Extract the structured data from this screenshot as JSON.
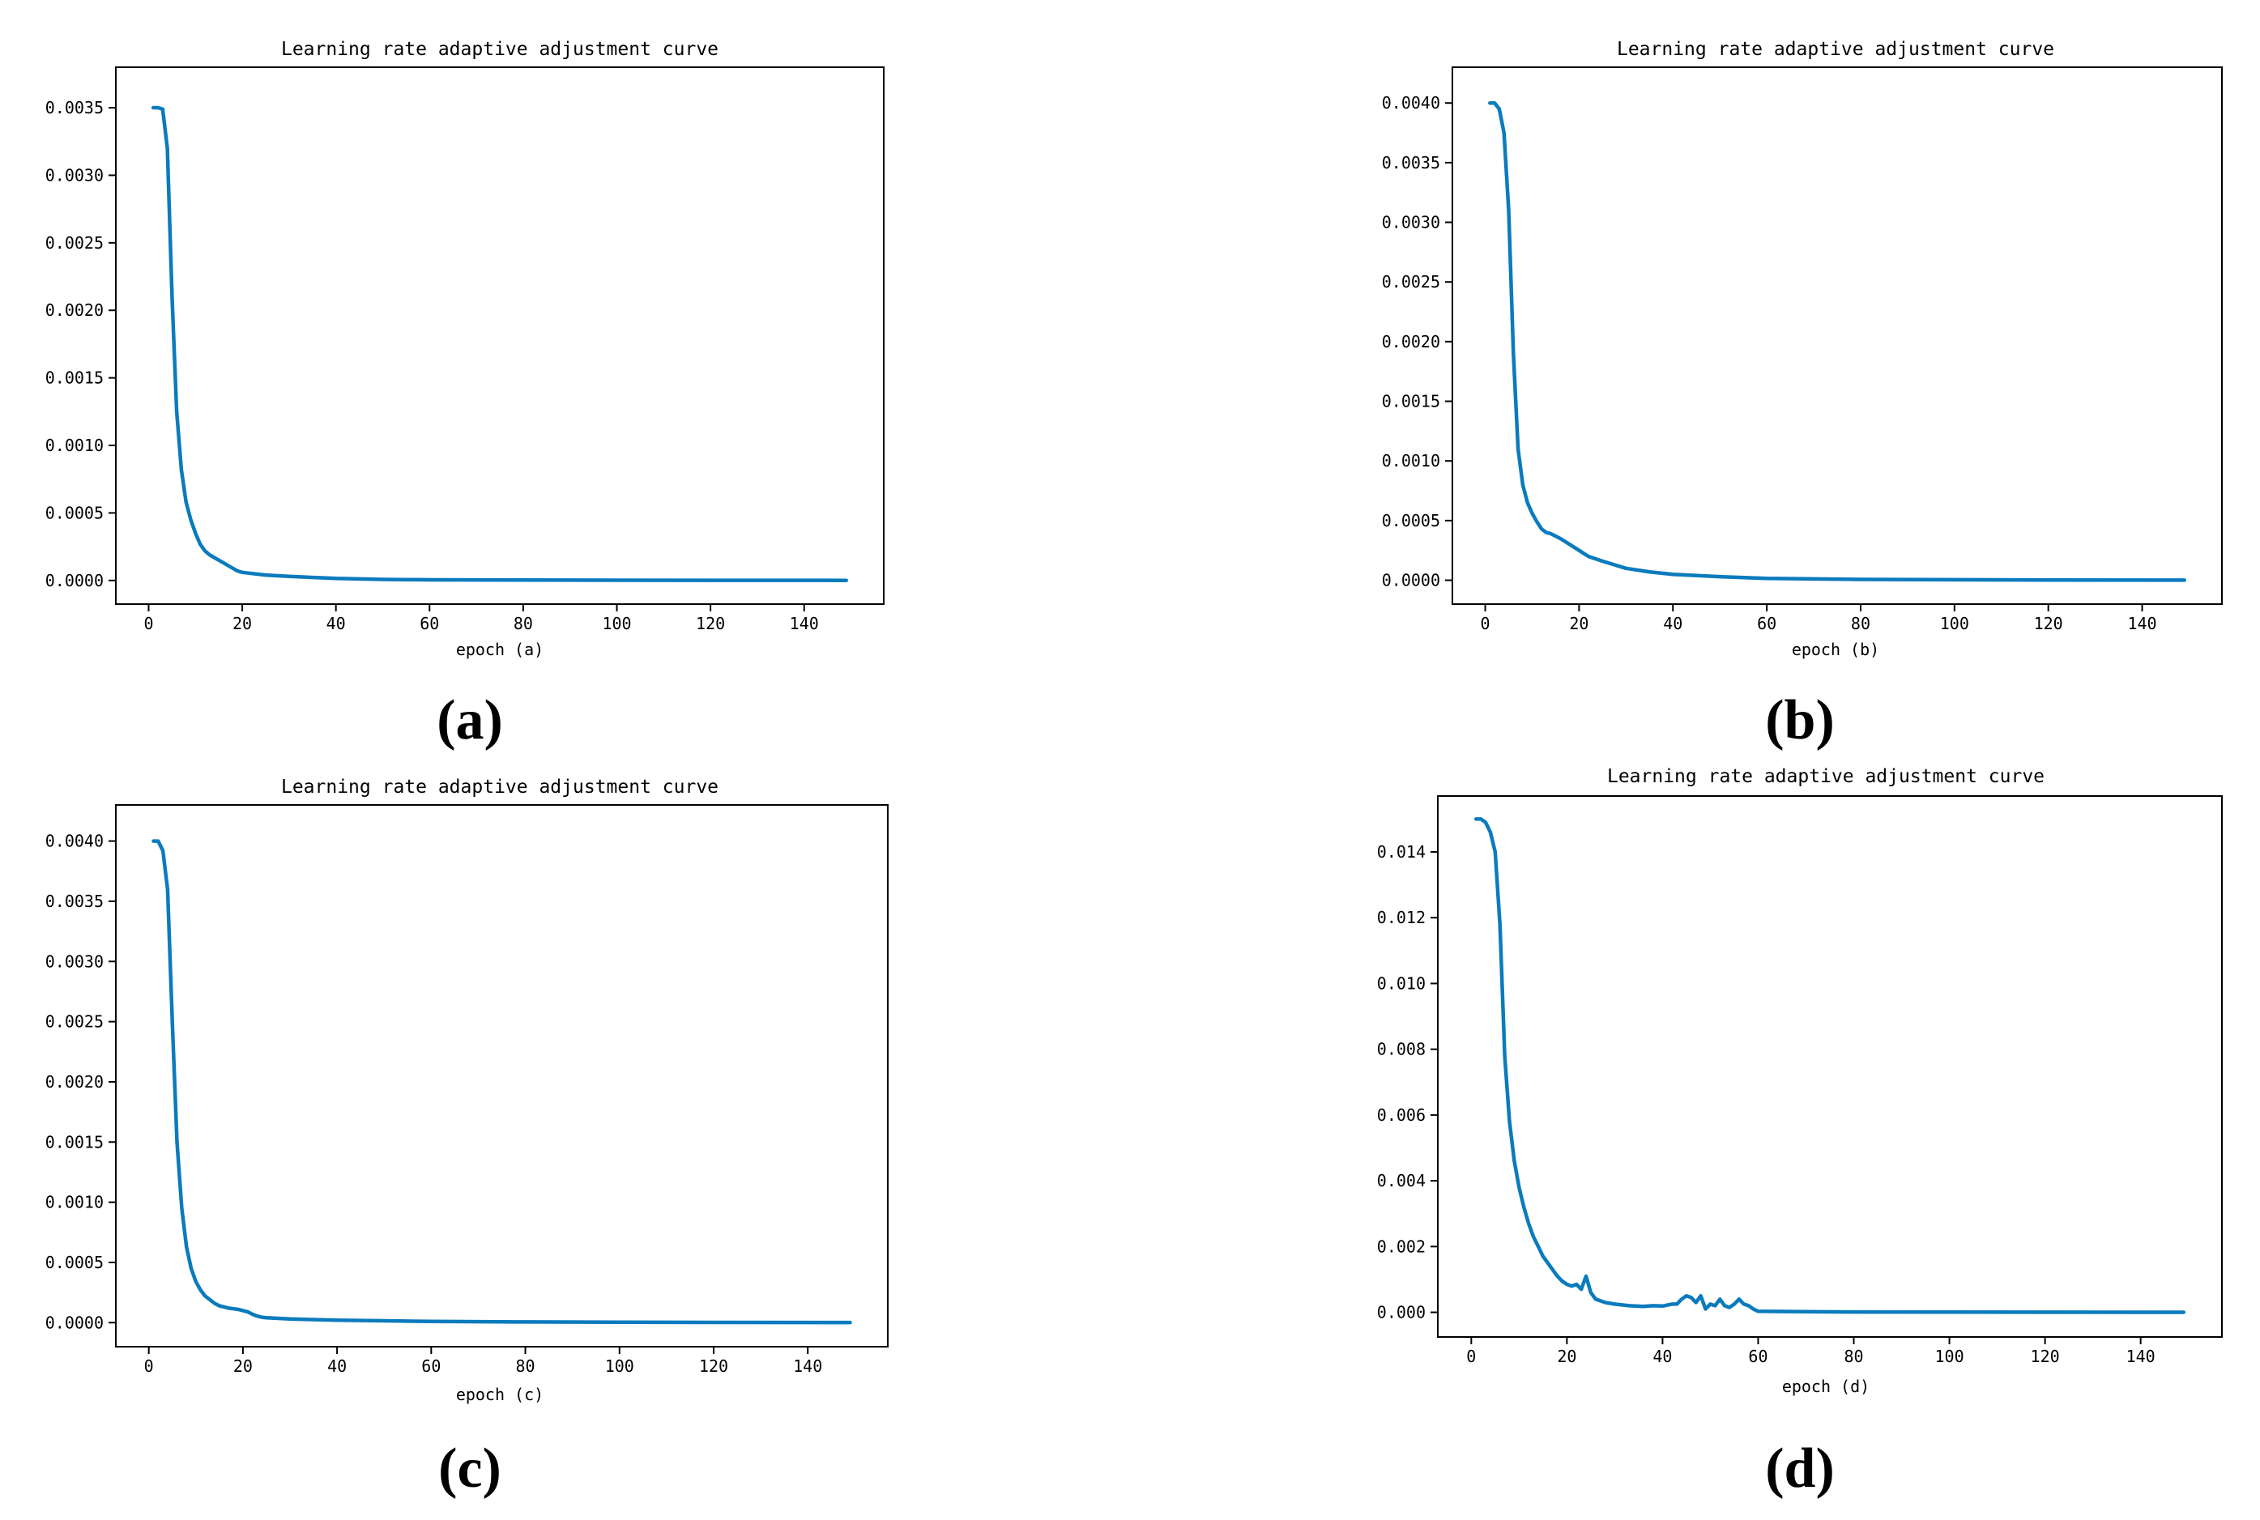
{
  "colors": {
    "line": "#0a7bbd",
    "axes": "#000000",
    "background": "#ffffff"
  },
  "chart_data": [
    {
      "panel": "(a)",
      "type": "line",
      "title": "Learning rate adaptive adjustment curve",
      "xlabel": "epoch (a)",
      "ylabel": "",
      "xlim": [
        -7,
        157
      ],
      "ylim": [
        -0.000175,
        0.0038
      ],
      "xticks": [
        0,
        20,
        40,
        60,
        80,
        100,
        120,
        140
      ],
      "xtick_labels": [
        "0",
        "20",
        "40",
        "60",
        "80",
        "100",
        "120",
        "140"
      ],
      "yticks": [
        0,
        0.0005,
        0.001,
        0.0015,
        0.002,
        0.0025,
        0.003,
        0.0035
      ],
      "ytick_labels": [
        "0.0000",
        "0.0005",
        "0.0010",
        "0.0015",
        "0.0020",
        "0.0025",
        "0.0030",
        "0.0035"
      ],
      "grid": false,
      "series": [
        {
          "x": [
            1,
            2,
            3,
            4,
            5,
            6,
            7,
            8,
            9,
            10,
            11,
            12,
            13,
            14,
            15,
            16,
            17,
            18,
            19,
            20,
            25,
            30,
            40,
            50,
            60,
            80,
            100,
            120,
            149
          ],
          "values": [
            0.0035,
            0.0035,
            0.00349,
            0.0032,
            0.0021,
            0.00125,
            0.00082,
            0.00058,
            0.00045,
            0.00035,
            0.00027,
            0.00022,
            0.00019,
            0.00017,
            0.00015,
            0.00013,
            0.00011,
            9e-05,
            7e-05,
            6e-05,
            4e-05,
            3e-05,
            1.5e-05,
            8e-06,
            5e-06,
            3e-06,
            2e-06,
            1e-06,
            5e-07
          ]
        }
      ]
    },
    {
      "panel": "(b)",
      "type": "line",
      "title": "Learning rate adaptive adjustment curve",
      "xlabel": "epoch (b)",
      "ylabel": "",
      "xlim": [
        -7,
        157
      ],
      "ylim": [
        -0.0002,
        0.0043
      ],
      "xticks": [
        0,
        20,
        40,
        60,
        80,
        100,
        120,
        140
      ],
      "xtick_labels": [
        "0",
        "20",
        "40",
        "60",
        "80",
        "100",
        "120",
        "140"
      ],
      "yticks": [
        0,
        0.0005,
        0.001,
        0.0015,
        0.002,
        0.0025,
        0.003,
        0.0035,
        0.004
      ],
      "ytick_labels": [
        "0.0000",
        "0.0005",
        "0.0010",
        "0.0015",
        "0.0020",
        "0.0025",
        "0.0030",
        "0.0035",
        "0.0040"
      ],
      "grid": false,
      "series": [
        {
          "x": [
            1,
            2,
            3,
            4,
            5,
            6,
            7,
            8,
            9,
            10,
            11,
            12,
            13,
            14,
            15,
            16,
            18,
            20,
            22,
            25,
            30,
            35,
            40,
            50,
            60,
            80,
            100,
            120,
            149
          ],
          "values": [
            0.004,
            0.004,
            0.00395,
            0.00375,
            0.0031,
            0.0019,
            0.0011,
            0.0008,
            0.00065,
            0.00056,
            0.00049,
            0.00043,
            0.0004,
            0.00039,
            0.00037,
            0.00035,
            0.0003,
            0.00025,
            0.0002,
            0.00016,
            0.0001,
            7e-05,
            5e-05,
            3e-05,
            1.5e-05,
            7e-06,
            4e-06,
            2e-06,
            1e-06
          ]
        }
      ]
    },
    {
      "panel": "(c)",
      "type": "line",
      "title": "Learning rate adaptive adjustment curve",
      "xlabel": "epoch (c)",
      "ylabel": "",
      "xlim": [
        -7,
        157
      ],
      "ylim": [
        -0.0002,
        0.0043
      ],
      "xticks": [
        0,
        20,
        40,
        60,
        80,
        100,
        120,
        140
      ],
      "xtick_labels": [
        "0",
        "20",
        "40",
        "60",
        "80",
        "100",
        "120",
        "140"
      ],
      "yticks": [
        0,
        0.0005,
        0.001,
        0.0015,
        0.002,
        0.0025,
        0.003,
        0.0035,
        0.004
      ],
      "ytick_labels": [
        "0.0000",
        "0.0005",
        "0.0010",
        "0.0015",
        "0.0020",
        "0.0025",
        "0.0030",
        "0.0035",
        "0.0040"
      ],
      "grid": false,
      "series": [
        {
          "x": [
            1,
            2,
            3,
            4,
            5,
            6,
            7,
            8,
            9,
            10,
            11,
            12,
            13,
            14,
            15,
            16,
            17,
            18,
            19,
            20,
            21,
            22,
            23,
            24,
            25,
            30,
            40,
            50,
            60,
            80,
            100,
            120,
            149
          ],
          "values": [
            0.004,
            0.004,
            0.00392,
            0.0036,
            0.0025,
            0.0015,
            0.00095,
            0.00063,
            0.00045,
            0.00034,
            0.00027,
            0.00022,
            0.00019,
            0.00016,
            0.00014,
            0.00013,
            0.00012,
            0.000115,
            0.00011,
            0.0001,
            9e-05,
            7e-05,
            5.5e-05,
            4.5e-05,
            4e-05,
            3e-05,
            2e-05,
            1.5e-05,
            1e-05,
            6e-06,
            4e-06,
            2e-06,
            1e-06
          ]
        }
      ]
    },
    {
      "panel": "(d)",
      "type": "line",
      "title": "Learning rate adaptive adjustment curve",
      "xlabel": "epoch (d)",
      "ylabel": "",
      "xlim": [
        -7,
        157
      ],
      "ylim": [
        -0.00075,
        0.0157
      ],
      "xticks": [
        0,
        20,
        40,
        60,
        80,
        100,
        120,
        140
      ],
      "xtick_labels": [
        "0",
        "20",
        "40",
        "60",
        "80",
        "100",
        "120",
        "140"
      ],
      "yticks": [
        0,
        0.002,
        0.004,
        0.006,
        0.008,
        0.01,
        0.012,
        0.014
      ],
      "ytick_labels": [
        "0.000",
        "0.002",
        "0.004",
        "0.006",
        "0.008",
        "0.010",
        "0.012",
        "0.014"
      ],
      "grid": false,
      "series": [
        {
          "x": [
            1,
            2,
            3,
            4,
            5,
            6,
            7,
            8,
            9,
            10,
            11,
            12,
            13,
            14,
            15,
            16,
            17,
            18,
            19,
            20,
            21,
            22,
            23,
            24,
            25,
            26,
            28,
            30,
            33,
            36,
            38,
            40,
            42,
            43,
            44,
            45,
            46,
            47,
            48,
            49,
            50,
            51,
            52,
            53,
            54,
            55,
            56,
            57,
            58,
            59,
            60,
            70,
            80,
            100,
            120,
            149
          ],
          "values": [
            0.015,
            0.015,
            0.0149,
            0.0146,
            0.014,
            0.0118,
            0.0078,
            0.0058,
            0.0046,
            0.0038,
            0.0032,
            0.0027,
            0.0023,
            0.002,
            0.0017,
            0.0015,
            0.0013,
            0.0011,
            0.00095,
            0.00085,
            0.0008,
            0.00085,
            0.0007,
            0.0011,
            0.0006,
            0.0004,
            0.0003,
            0.00025,
            0.0002,
            0.00018,
            0.0002,
            0.00019,
            0.00025,
            0.00025,
            0.0004,
            0.0005,
            0.00045,
            0.0003,
            0.0005,
            0.0001,
            0.00025,
            0.0002,
            0.0004,
            0.0002,
            0.00015,
            0.00025,
            0.0004,
            0.00025,
            0.0002,
            0.0001,
            3e-05,
            2e-05,
            1e-05,
            6e-06,
            3e-06,
            1e-06
          ]
        }
      ]
    }
  ]
}
